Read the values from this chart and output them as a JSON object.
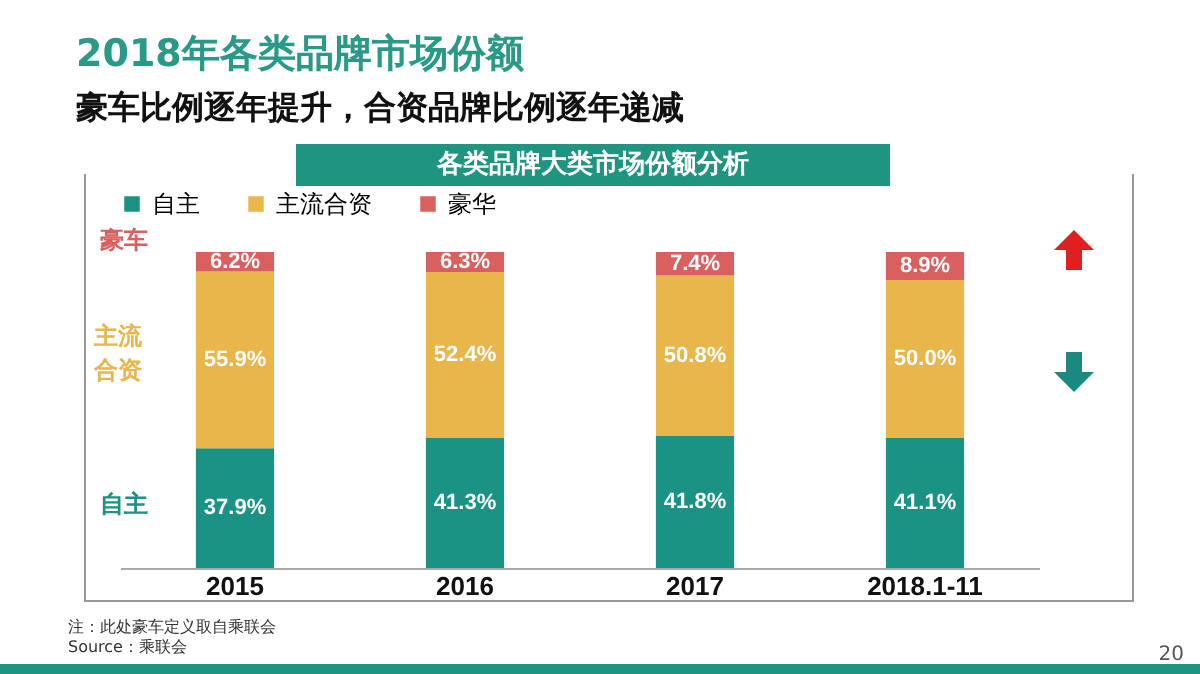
{
  "chart_data": {
    "type": "bar",
    "title": "2018年各类品牌市场份额",
    "subtitle": "豪车比例逐年提升，合资品牌比例逐年递减",
    "xlabel": "各类品牌大类市场份额分析",
    "categories": [
      "2015",
      "2016",
      "2017",
      "2018.1-11"
    ],
    "stacked": true,
    "legend": "top",
    "series": [
      {
        "name": "自主",
        "color": "#1a9384",
        "values": [
          37.9,
          41.3,
          41.8,
          41.1
        ],
        "value_labels": [
          "37.9%",
          "41.3%",
          "41.8%",
          "41.1%"
        ]
      },
      {
        "name": "主流合资",
        "color": "#e8b64a",
        "values": [
          55.9,
          52.4,
          50.8,
          50.0
        ],
        "value_labels": [
          "55.9%",
          "52.4%",
          "50.8%",
          "50.0%"
        ]
      },
      {
        "name": "豪华",
        "color": "#d9605e",
        "values": [
          6.2,
          6.3,
          7.4,
          8.9
        ],
        "value_labels": [
          "6.2%",
          "6.3%",
          "7.4%",
          "8.9%"
        ]
      }
    ],
    "annotations": [
      "豪车",
      "主流合资",
      "自主",
      "注：此处豪车定义取自乘联会",
      "Source：乘联会",
      "20"
    ]
  }
}
